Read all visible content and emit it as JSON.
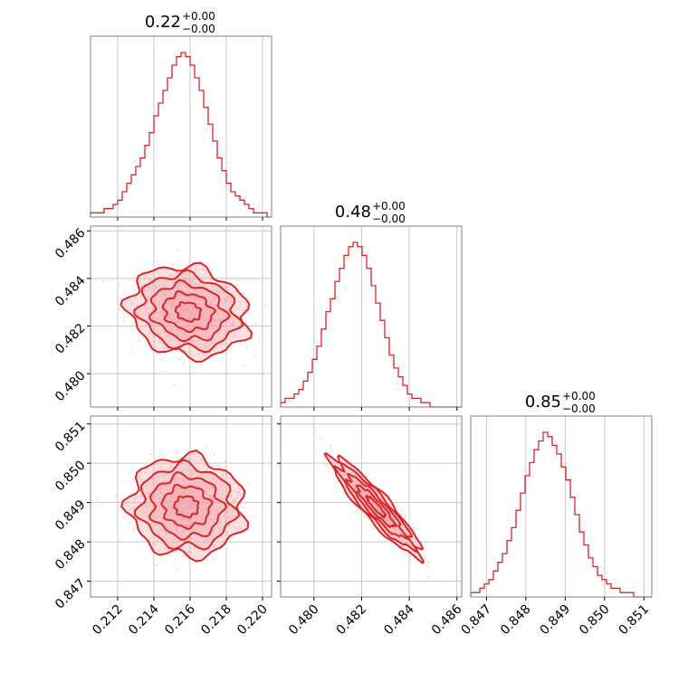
{
  "colors": {
    "series": "#d62728",
    "fill": "#f4a3a8",
    "frame": "#808080",
    "grid": "#c8c8c8",
    "scatter": "#f3c6c9"
  },
  "chart_data": {
    "type": "corner",
    "parameters": [
      {
        "title_value": "0.22",
        "title_plus": "+0.00",
        "title_minus": "−0.00",
        "range": [
          0.2105,
          0.2205
        ]
      },
      {
        "title_value": "0.48",
        "title_plus": "+0.00",
        "title_minus": "−0.00",
        "range": [
          0.4786,
          0.4862
        ]
      },
      {
        "title_value": "0.85",
        "title_plus": "+0.00",
        "title_minus": "−0.00",
        "range": [
          0.8466,
          0.8512
        ]
      }
    ],
    "ticks": [
      {
        "values": [
          0.212,
          0.214,
          0.216,
          0.218,
          0.22
        ],
        "labels": [
          "0.212",
          "0.214",
          "0.216",
          "0.218",
          "0.220"
        ]
      },
      {
        "values": [
          0.48,
          0.482,
          0.484,
          0.486
        ],
        "labels": [
          "0.480",
          "0.482",
          "0.484",
          "0.486"
        ]
      },
      {
        "values": [
          0.847,
          0.848,
          0.849,
          0.85,
          0.851
        ],
        "labels": [
          "0.847",
          "0.848",
          "0.849",
          "0.850",
          "0.851"
        ]
      }
    ],
    "histograms": [
      {
        "param": 0,
        "counts": [
          1,
          1,
          1,
          2,
          2,
          3,
          4,
          6,
          8,
          10,
          12,
          14,
          17,
          20,
          24,
          27,
          30,
          33,
          36,
          38,
          39,
          38,
          36,
          33,
          30,
          26,
          22,
          18,
          14,
          11,
          8,
          6,
          5,
          4,
          3,
          2,
          1,
          1,
          1,
          0
        ]
      },
      {
        "param": 1,
        "counts": [
          1,
          2,
          2,
          3,
          4,
          6,
          8,
          11,
          14,
          18,
          22,
          25,
          29,
          32,
          35,
          37,
          38,
          37,
          35,
          32,
          28,
          24,
          20,
          16,
          12,
          9,
          7,
          5,
          3,
          2,
          2,
          1,
          1,
          0,
          0,
          0,
          0,
          0,
          0,
          0
        ]
      },
      {
        "param": 2,
        "counts": [
          1,
          1,
          2,
          3,
          4,
          6,
          8,
          10,
          13,
          16,
          20,
          24,
          28,
          31,
          34,
          36,
          38,
          37,
          35,
          33,
          30,
          27,
          23,
          19,
          15,
          12,
          9,
          7,
          5,
          4,
          3,
          2,
          2,
          1,
          1,
          1,
          0,
          0,
          0,
          0
        ]
      }
    ],
    "pairs": [
      {
        "x_param": 0,
        "y_param": 1,
        "mean": [
          0.2159,
          0.4826
        ],
        "sigma": [
          0.00135,
          0.00078
        ],
        "correlation": -0.15
      },
      {
        "x_param": 0,
        "y_param": 2,
        "mean": [
          0.2158,
          0.8489
        ],
        "sigma": [
          0.0013,
          0.00052
        ],
        "correlation": -0.05
      },
      {
        "x_param": 1,
        "y_param": 2,
        "mean": [
          0.4826,
          0.8489
        ],
        "sigma": [
          0.00078,
          0.00052
        ],
        "correlation": -0.92
      }
    ],
    "grid": true
  }
}
